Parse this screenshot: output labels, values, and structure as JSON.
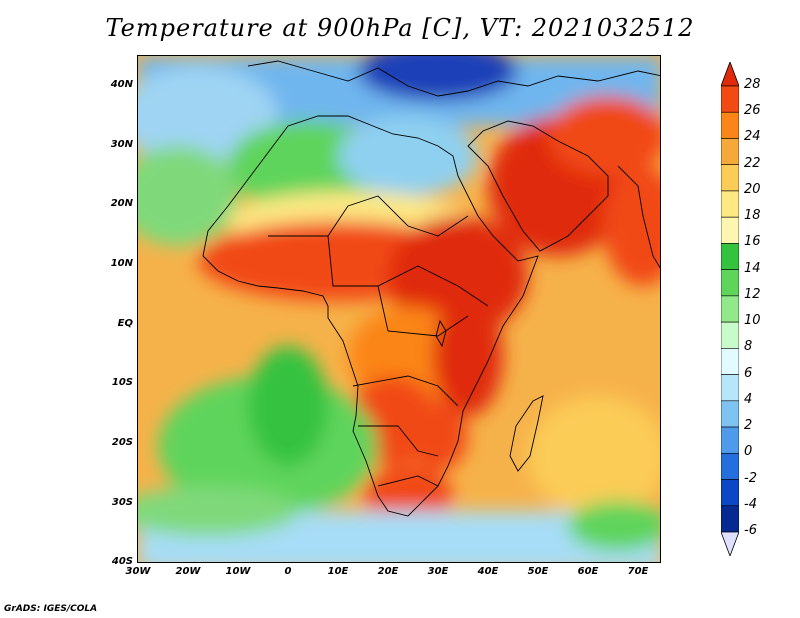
{
  "title": "Temperature at 900hPa [C], VT: 2021032512",
  "credit": "GrADS: IGES/COLA",
  "map": {
    "projection": "lat-lon",
    "lat_labels": [
      "40N",
      "30N",
      "20N",
      "10N",
      "EQ",
      "10S",
      "20S",
      "30S",
      "40S"
    ],
    "lon_labels": [
      "30W",
      "20W",
      "10W",
      "0",
      "10E",
      "20E",
      "30E",
      "40E",
      "50E",
      "60E",
      "70E"
    ]
  },
  "colorbar": {
    "levels": [
      "28",
      "26",
      "24",
      "22",
      "20",
      "18",
      "16",
      "14",
      "12",
      "10",
      "8",
      "6",
      "4",
      "2",
      "0",
      "-2",
      "-4",
      "-6"
    ],
    "colors": [
      "#e02a0c",
      "#f14a12",
      "#fb8518",
      "#f5a93a",
      "#fbcc57",
      "#fde883",
      "#fdf6b0",
      "#35c23f",
      "#5fd45b",
      "#92e98a",
      "#c9fac9",
      "#e1fbff",
      "#b7e6fb",
      "#7fc3f2",
      "#4f9aea",
      "#246fdd",
      "#0c48c6",
      "#062a92",
      "#061c70"
    ],
    "top_color": "#e02a0c",
    "bottom_color": "#dfe2ff"
  }
}
